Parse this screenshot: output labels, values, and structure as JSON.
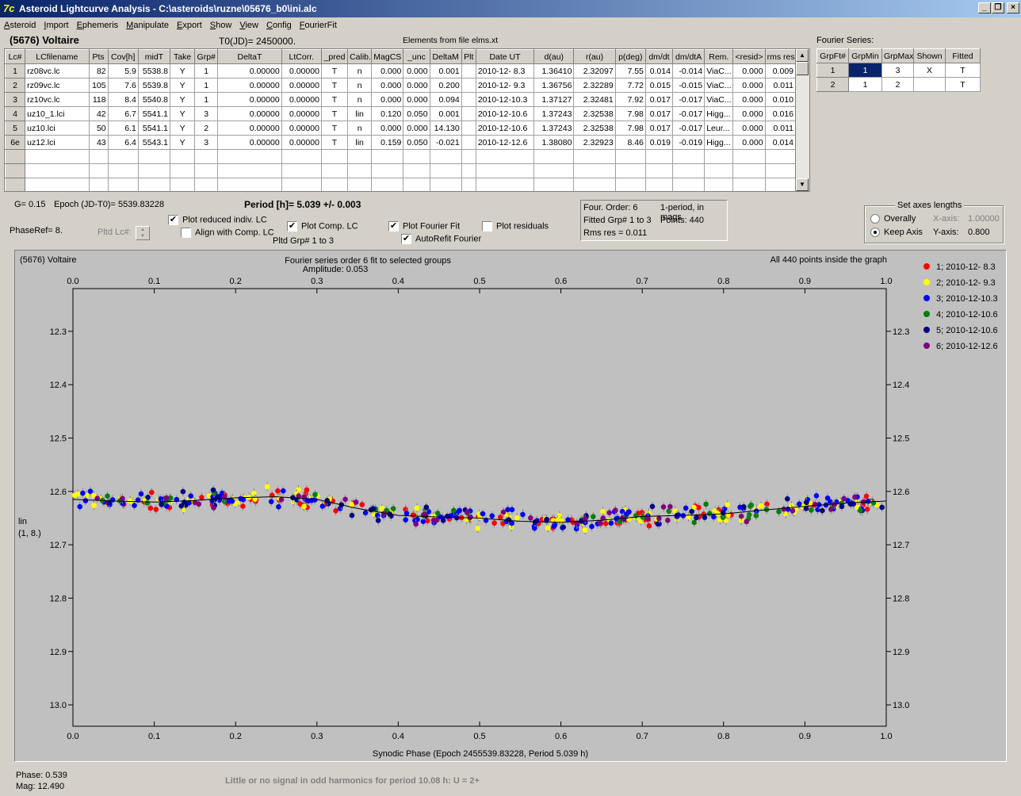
{
  "window": {
    "title": "Asteroid Lightcurve Analysis - C:\\asteroids\\ruzne\\05676_b0\\ini.alc",
    "app_icon": "7c",
    "controls": [
      "minimize-icon",
      "restore-icon",
      "close-icon"
    ]
  },
  "menu": [
    {
      "first": "A",
      "rest": "steroid"
    },
    {
      "first": "I",
      "rest": "mport"
    },
    {
      "first": "E",
      "rest": "phemeris"
    },
    {
      "first": "M",
      "rest": "anipulate"
    },
    {
      "first": "E",
      "rest": "xport"
    },
    {
      "first": "S",
      "rest": "how"
    },
    {
      "first": "V",
      "rest": "iew"
    },
    {
      "first": "C",
      "rest": "onfig"
    },
    {
      "first": "F",
      "rest": "ourierFit"
    }
  ],
  "header": {
    "asteroid_name": "(5676) Voltaire",
    "t0": "T0(JD)= 2450000.",
    "elements": "Elements from file elms.xt"
  },
  "lc_table": {
    "columns": [
      "Lc#",
      "LCfilename",
      "Pts",
      "Cov[h]",
      "midT",
      "Take",
      "Grp#",
      "DeltaT",
      "LtCorr.",
      "_pred",
      "Calib.",
      "MagCS",
      "_unc",
      "DeltaM",
      "Plt",
      "Date UT",
      "d(au)",
      "r(au)",
      "p(deg)",
      "dm/dt",
      "dm/dtA",
      "Rem.",
      "<resid>",
      "rms res"
    ],
    "rows": [
      [
        "1",
        "rz08vc.lc",
        "82",
        "5.9",
        "5538.8",
        "Y",
        "1",
        "0.00000",
        "0.00000",
        "T",
        "n",
        "0.000",
        "0.000",
        "0.001",
        "",
        "2010-12- 8.3",
        "1.36410",
        "2.32097",
        "7.55",
        "0.014",
        "-0.014",
        "ViaC...",
        "0.000",
        "0.009"
      ],
      [
        "2",
        "rz09vc.lc",
        "105",
        "7.6",
        "5539.8",
        "Y",
        "1",
        "0.00000",
        "0.00000",
        "T",
        "n",
        "0.000",
        "0.000",
        "0.200",
        "",
        "2010-12- 9.3",
        "1.36756",
        "2.32289",
        "7.72",
        "0.015",
        "-0.015",
        "ViaC...",
        "0.000",
        "0.011"
      ],
      [
        "3",
        "rz10vc.lc",
        "118",
        "8.4",
        "5540.8",
        "Y",
        "1",
        "0.00000",
        "0.00000",
        "T",
        "n",
        "0.000",
        "0.000",
        "0.094",
        "",
        "2010-12-10.3",
        "1.37127",
        "2.32481",
        "7.92",
        "0.017",
        "-0.017",
        "ViaC...",
        "0.000",
        "0.010"
      ],
      [
        "4",
        "uz10_1.lci",
        "42",
        "6.7",
        "5541.1",
        "Y",
        "3",
        "0.00000",
        "0.00000",
        "T",
        "lin",
        "0.120",
        "0.050",
        "0.001",
        "",
        "2010-12-10.6",
        "1.37243",
        "2.32538",
        "7.98",
        "0.017",
        "-0.017",
        "Higg...",
        "0.000",
        "0.016"
      ],
      [
        "5",
        "uz10.lci",
        "50",
        "6.1",
        "5541.1",
        "Y",
        "2",
        "0.00000",
        "0.00000",
        "T",
        "n",
        "0.000",
        "0.000",
        "14.130",
        "",
        "2010-12-10.6",
        "1.37243",
        "2.32538",
        "7.98",
        "0.017",
        "-0.017",
        "Leur...",
        "0.000",
        "0.011"
      ],
      [
        "6e",
        "uz12.lci",
        "43",
        "6.4",
        "5543.1",
        "Y",
        "3",
        "0.00000",
        "0.00000",
        "T",
        "lin",
        "0.159",
        "0.050",
        "-0.021",
        "",
        "2010-12-12.6",
        "1.38080",
        "2.32923",
        "8.46",
        "0.019",
        "-0.019",
        "Higg...",
        "0.000",
        "0.014"
      ]
    ],
    "empty_rows": 3
  },
  "fourier_panel": {
    "title": "Fourier Series:",
    "columns": [
      "GrpFt#",
      "GrpMin",
      "GrpMax",
      "Shown",
      "Fitted"
    ],
    "rows": [
      [
        "1",
        "1",
        "3",
        "X",
        "T"
      ],
      [
        "2",
        "1",
        "2",
        "",
        "T"
      ]
    ]
  },
  "controls": {
    "g_value": "G= 0.15",
    "epoch": "Epoch (JD-T0)= 5539.83228",
    "period": "Period [h]= 5.039 +/- 0.003",
    "phaseref": "PhaseRef= 8.",
    "pltd_lc_label": "Pltd Lc#:",
    "plot_reduced": {
      "label": "Plot reduced indiv. LC",
      "checked": true
    },
    "align_comp": {
      "label": "Align with Comp. LC",
      "checked": false
    },
    "plot_comp": {
      "label": "Plot Comp. LC",
      "checked": true
    },
    "pltd_grp": "Pltd Grp#  1   to    3",
    "plot_fourier": {
      "label": "Plot Fourier Fit",
      "checked": true
    },
    "autorefit": {
      "label": "AutoRefit Fourier",
      "checked": true
    },
    "plot_residuals": {
      "label": "Plot residuals",
      "checked": false
    }
  },
  "fit_info": {
    "four_order": "Four. Order:  6",
    "period_mode": "1-period, in mags",
    "fitted_grp": "Fitted Grp# 1 to 3",
    "points": "Points: 440",
    "rms": "Rms res     = 0.011"
  },
  "axes_box": {
    "title": "Set axes lengths",
    "overally": "Overally",
    "keep_axis": "Keep Axis",
    "selected": "keep_axis",
    "x_axis_label": "X-axis:",
    "x_axis_value": "1.00000",
    "y_axis_label": "Y-axis:",
    "y_axis_value": "0.800"
  },
  "chart_data": {
    "type": "scatter",
    "title": "Fourier series order 6 fit to selected groups",
    "subtitle": "Amplitude: 0.053",
    "top_left": "(5676) Voltaire",
    "top_right": "All 440 points inside the graph",
    "xlabel": "Synodic Phase (Epoch 2455539.83228, Period 5.039 h)",
    "ylabel_line1": "lin",
    "ylabel_line2": "(1, 8.)",
    "xlim": [
      0.0,
      1.0
    ],
    "ylim": [
      13.04,
      12.22
    ],
    "x_ticks": [
      "0.0",
      "0.1",
      "0.2",
      "0.3",
      "0.4",
      "0.5",
      "0.6",
      "0.7",
      "0.8",
      "0.9",
      "1.0"
    ],
    "y_ticks": [
      "12.3",
      "12.4",
      "12.5",
      "12.6",
      "12.7",
      "12.8",
      "12.9",
      "13.0"
    ],
    "y_tick_values": [
      12.3,
      12.4,
      12.5,
      12.6,
      12.7,
      12.8,
      12.9,
      13.0
    ],
    "plot_background": "#c0c0c0",
    "grid": false,
    "legend_placement": "right",
    "series": [
      {
        "name": "1; 2010-12- 8.3",
        "color": "#ff0000",
        "count": 82
      },
      {
        "name": "2; 2010-12- 9.3",
        "color": "#ffff00",
        "count": 105
      },
      {
        "name": "3; 2010-12-10.3",
        "color": "#0000ff",
        "count": 118
      },
      {
        "name": "4; 2010-12-10.6",
        "color": "#008000",
        "count": 42
      },
      {
        "name": "5; 2010-12-10.6",
        "color": "#000080",
        "count": 50
      },
      {
        "name": "6; 2010-12-12.6",
        "color": "#800080",
        "count": 43
      }
    ],
    "fit_curve": {
      "x": [
        0.0,
        0.05,
        0.1,
        0.15,
        0.2,
        0.25,
        0.3,
        0.35,
        0.4,
        0.45,
        0.5,
        0.55,
        0.6,
        0.65,
        0.7,
        0.75,
        0.8,
        0.85,
        0.9,
        0.95,
        1.0
      ],
      "y": [
        12.615,
        12.618,
        12.62,
        12.617,
        12.612,
        12.61,
        12.615,
        12.632,
        12.645,
        12.648,
        12.65,
        12.656,
        12.658,
        12.654,
        12.647,
        12.645,
        12.642,
        12.635,
        12.628,
        12.622,
        12.618
      ]
    }
  },
  "status": {
    "phase": "Phase:  0.539",
    "mag": "Mag:    12.490",
    "message": "Little or no signal in odd harmonics for period 10.08 h: U = 2+"
  }
}
